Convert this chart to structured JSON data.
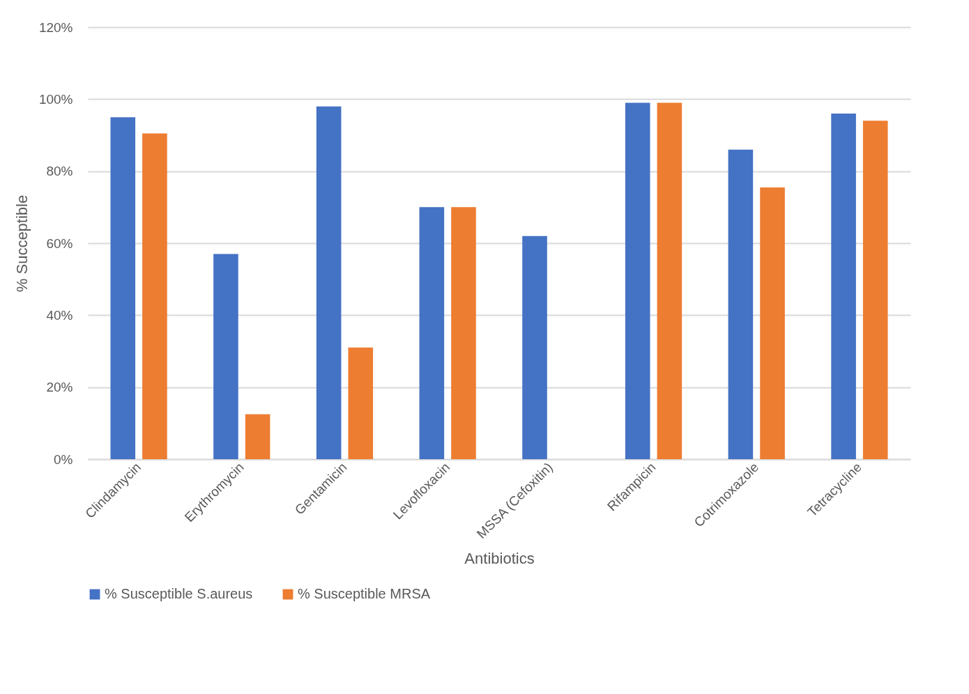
{
  "chart_data": {
    "type": "bar",
    "xlabel": "Antibiotics",
    "ylabel": "% Succeptible",
    "categories": [
      "Clindamycin",
      "Erythromycin",
      "Gentamicin",
      "Levofloxacin",
      "MSSA (Cefoxitin)",
      "Rifampicin",
      "Cotrimoxazole",
      "Tetracycline"
    ],
    "series": [
      {
        "name": "% Susceptible S.aureus",
        "color": "#4472c4",
        "values": [
          95,
          57,
          98,
          70,
          62,
          99,
          86,
          96
        ]
      },
      {
        "name": "% Susceptible MRSA",
        "color": "#ed7d31",
        "values": [
          90.5,
          12.5,
          31,
          70,
          null,
          99,
          75.5,
          94
        ]
      }
    ],
    "ylim": [
      0,
      120
    ],
    "yticks": [
      {
        "value": 0,
        "label": "0%"
      },
      {
        "value": 20,
        "label": "20%"
      },
      {
        "value": 40,
        "label": "40%"
      },
      {
        "value": 60,
        "label": "60%"
      },
      {
        "value": 80,
        "label": "80%"
      },
      {
        "value": 100,
        "label": "100%"
      },
      {
        "value": 120,
        "label": "120%"
      }
    ],
    "grid": "y",
    "legend": "bottom"
  }
}
